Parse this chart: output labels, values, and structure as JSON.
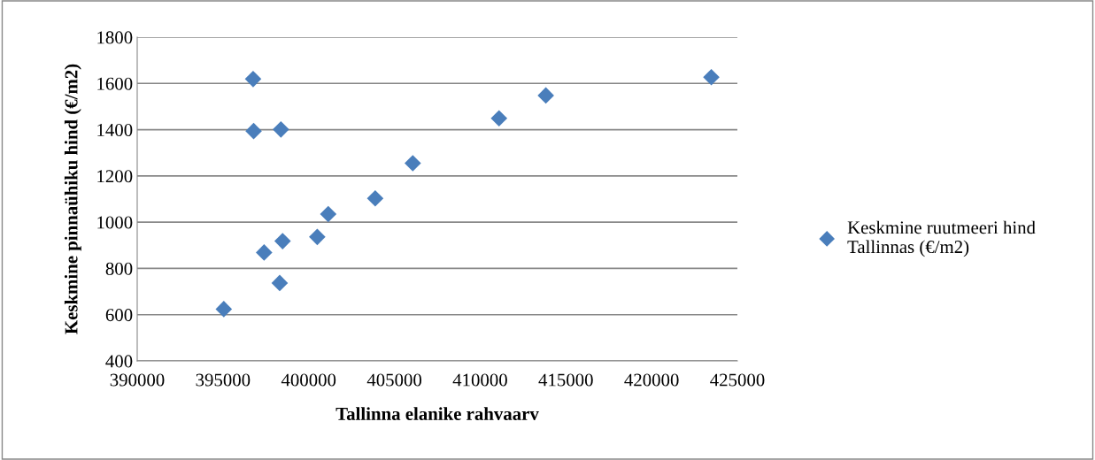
{
  "chart_data": {
    "type": "scatter",
    "xlabel": "Tallinna elanike rahvaarv",
    "ylabel": "Keskmine pinnaühiku hind (€/m2)",
    "series": [
      {
        "name": "Keskmine ruutmeeri hind Tallinnas (€/m2)",
        "color": "#4a7ebb",
        "x": [
          395050,
          396760,
          396790,
          398380,
          397400,
          398310,
          398480,
          400500,
          401140,
          403880,
          406070,
          411100,
          413830,
          423480
        ],
        "values": [
          624,
          1619,
          1394,
          1401,
          869,
          737,
          918,
          936,
          1035,
          1103,
          1255,
          1449,
          1548,
          1627
        ]
      }
    ],
    "xlim": [
      390000,
      425000
    ],
    "xticks": [
      390000,
      395000,
      400000,
      405000,
      410000,
      415000,
      420000,
      425000
    ],
    "ylim": [
      400,
      1800
    ],
    "yticks": [
      400,
      600,
      800,
      1000,
      1200,
      1400,
      1600,
      1800
    ],
    "grid": "y",
    "legend": "right",
    "marker": "diamond"
  }
}
